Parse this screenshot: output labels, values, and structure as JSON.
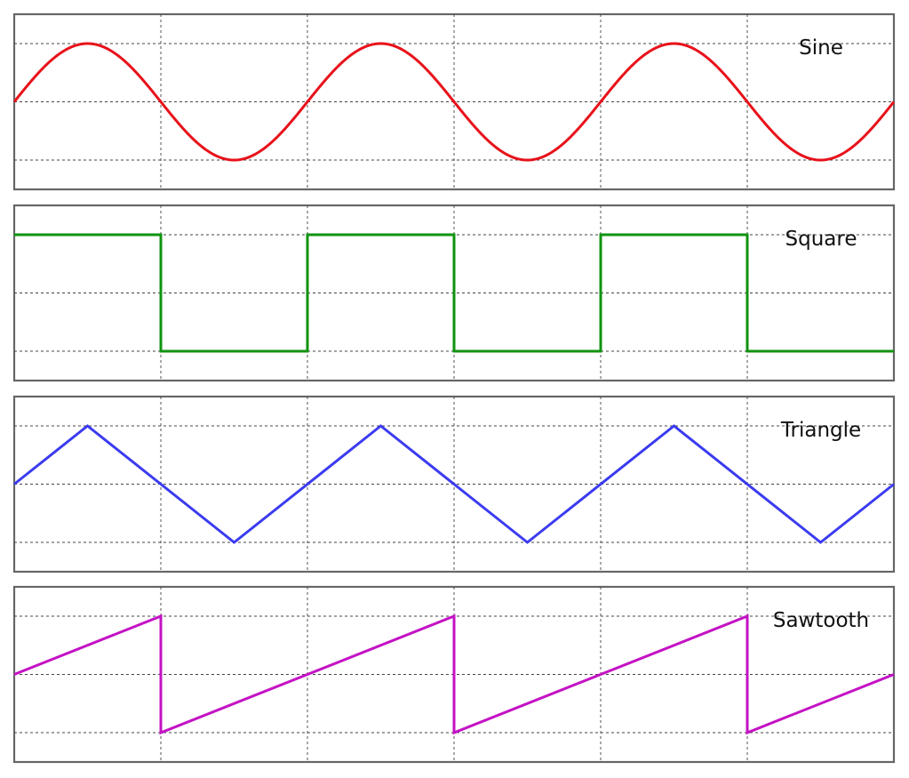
{
  "chart_data": [
    {
      "type": "line",
      "title": "Sine",
      "color": "#e8111a",
      "grid": true,
      "xlim": [
        0,
        3
      ],
      "ylim": [
        -1,
        1
      ],
      "series": [
        {
          "x": [
            0,
            0.125,
            0.25,
            0.375,
            0.5,
            0.625,
            0.75,
            0.875,
            1,
            1.125,
            1.25,
            1.375,
            1.5,
            1.625,
            1.75,
            1.875,
            2,
            2.125,
            2.25,
            2.375,
            2.5,
            2.625,
            2.75,
            2.875,
            3
          ],
          "y": [
            0,
            0.71,
            1,
            0.71,
            0,
            -0.71,
            -1,
            -0.71,
            0,
            0.71,
            1,
            0.71,
            0,
            -0.71,
            -1,
            -0.71,
            0,
            0.71,
            1,
            0.71,
            0,
            -0.71,
            -1,
            -0.71,
            0
          ]
        }
      ]
    },
    {
      "type": "line",
      "title": "Square",
      "color": "#0f930f",
      "grid": true,
      "xlim": [
        0,
        3
      ],
      "ylim": [
        -1,
        1
      ],
      "series": [
        {
          "x": [
            0,
            0.5,
            0.5,
            1,
            1,
            1.5,
            1.5,
            2,
            2,
            2.5,
            2.5,
            3
          ],
          "y": [
            1,
            1,
            -1,
            -1,
            1,
            1,
            -1,
            -1,
            1,
            1,
            -1,
            -1
          ]
        }
      ]
    },
    {
      "type": "line",
      "title": "Triangle",
      "color": "#3b3bf0",
      "grid": true,
      "xlim": [
        0,
        3
      ],
      "ylim": [
        -1,
        1
      ],
      "series": [
        {
          "x": [
            0,
            0.25,
            0.75,
            1.25,
            1.75,
            2.25,
            2.75,
            3
          ],
          "y": [
            0,
            1,
            -1,
            1,
            -1,
            1,
            -1,
            0
          ]
        }
      ]
    },
    {
      "type": "line",
      "title": "Sawtooth",
      "color": "#c412c4",
      "grid": true,
      "xlim": [
        0,
        3
      ],
      "ylim": [
        -1,
        1
      ],
      "series": [
        {
          "x": [
            0,
            0.5,
            0.5,
            1.5,
            1.5,
            2.5,
            2.5,
            3
          ],
          "y": [
            0,
            1,
            -1,
            1,
            -1,
            1,
            -1,
            0
          ]
        }
      ]
    }
  ]
}
